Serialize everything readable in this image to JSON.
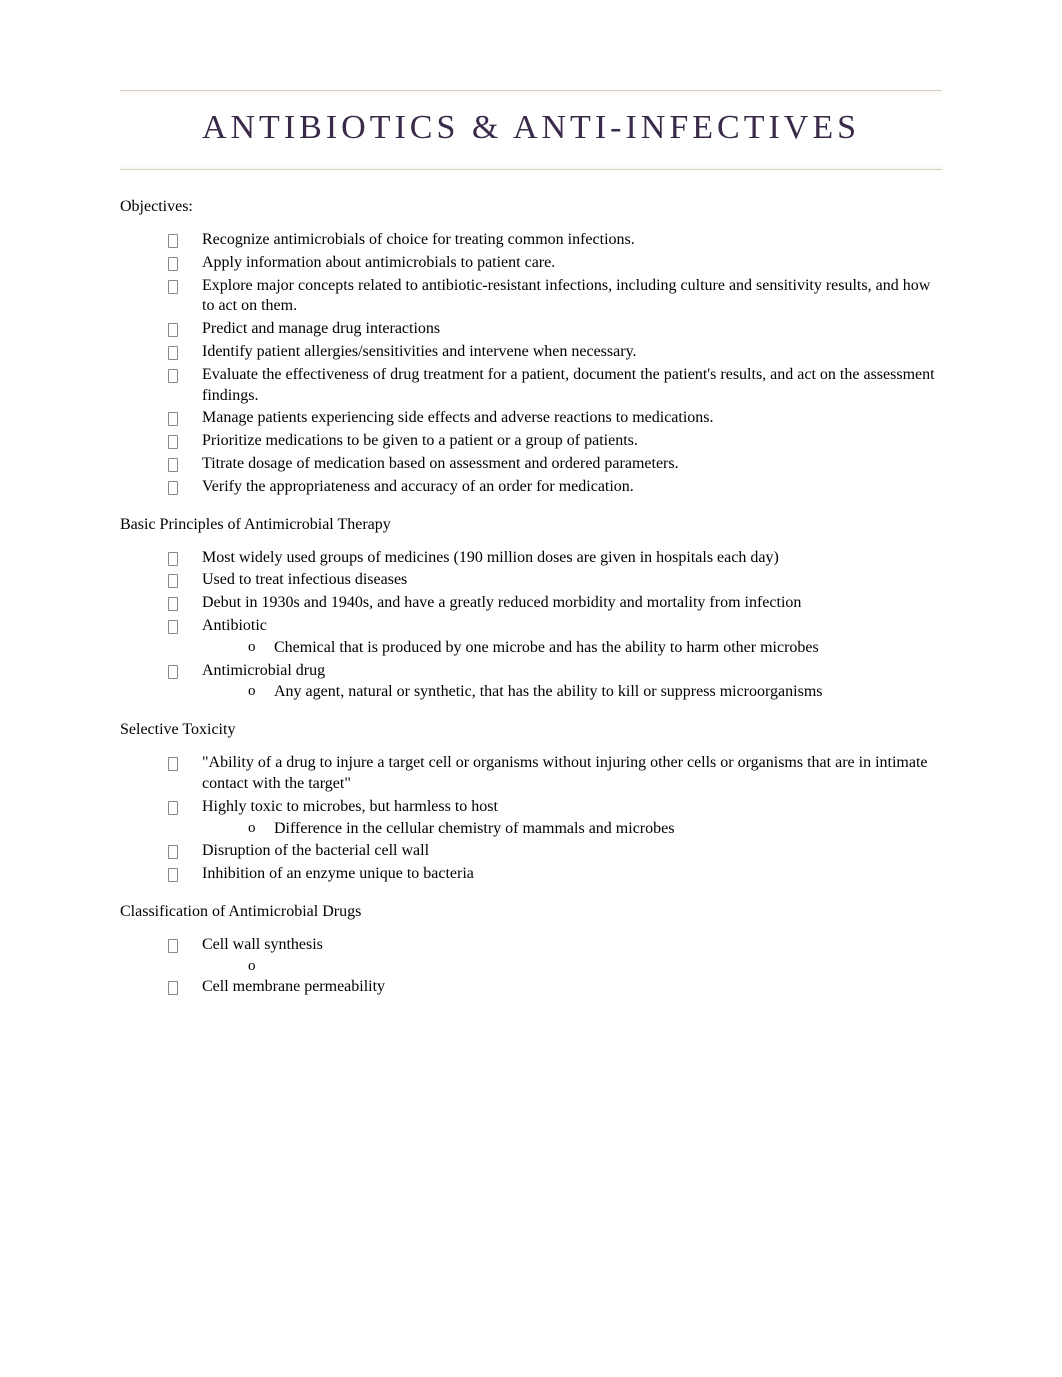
{
  "title": "ANTIBIOTICS & ANTI-INFECTIVES",
  "colors": {
    "title_color": "#3a2a4a",
    "body_text": "#000000",
    "rule": "#d8d0c0",
    "background": "#ffffff"
  },
  "typography": {
    "title_fontsize": 34,
    "title_letter_spacing": 4,
    "body_fontsize": 16,
    "font_family": "Times New Roman"
  },
  "sections": [
    {
      "heading": "Objectives:",
      "items": [
        {
          "text": "Recognize antimicrobials of choice for treating common infections."
        },
        {
          "text": "Apply information about antimicrobials to patient care."
        },
        {
          "text": "Explore major concepts related to antibiotic-resistant infections, including culture and sensitivity results, and how to act on them."
        },
        {
          "text": "Predict and manage drug interactions"
        },
        {
          "text": "Identify patient allergies/sensitivities and intervene when necessary."
        },
        {
          "text": "Evaluate the effectiveness of drug treatment for a patient, document the patient's results, and act on the assessment findings."
        },
        {
          "text": "Manage patients experiencing side effects and adverse reactions to medications."
        },
        {
          "text": "Prioritize medications to be given to a patient or a group of patients."
        },
        {
          "text": "Titrate dosage of medication based on assessment and ordered parameters."
        },
        {
          "text": "Verify the appropriateness and accuracy of an order for medication."
        }
      ]
    },
    {
      "heading": "Basic Principles of Antimicrobial Therapy",
      "items": [
        {
          "text": "Most widely used groups of medicines (190 million doses are given in hospitals each day)"
        },
        {
          "text": "Used to treat infectious diseases"
        },
        {
          "text": "Debut in 1930s and 1940s, and have a greatly reduced morbidity and mortality from infection"
        },
        {
          "text": "Antibiotic",
          "sub": [
            {
              "text": "Chemical that is produced by one microbe and has the ability to harm other microbes"
            }
          ]
        },
        {
          "text": "Antimicrobial drug",
          "sub": [
            {
              "text": "Any agent, natural or synthetic, that has the ability to kill or suppress microorganisms"
            }
          ]
        }
      ]
    },
    {
      "heading": "Selective Toxicity",
      "items": [
        {
          "text": "\"Ability of a drug to injure a target cell or organisms without injuring other cells or organisms that are in intimate contact with the target\""
        },
        {
          "text": "Highly toxic to microbes, but harmless to host",
          "sub": [
            {
              "text": "Difference in the cellular chemistry of mammals and microbes"
            }
          ]
        },
        {
          "text": "Disruption of the bacterial cell wall"
        },
        {
          "text": "Inhibition of an enzyme unique to bacteria"
        }
      ]
    },
    {
      "heading": "Classification of Antimicrobial Drugs",
      "items": [
        {
          "text": "Cell wall synthesis",
          "sub": [
            {
              "text": ""
            }
          ]
        },
        {
          "text": "Cell membrane permeability"
        }
      ]
    }
  ]
}
